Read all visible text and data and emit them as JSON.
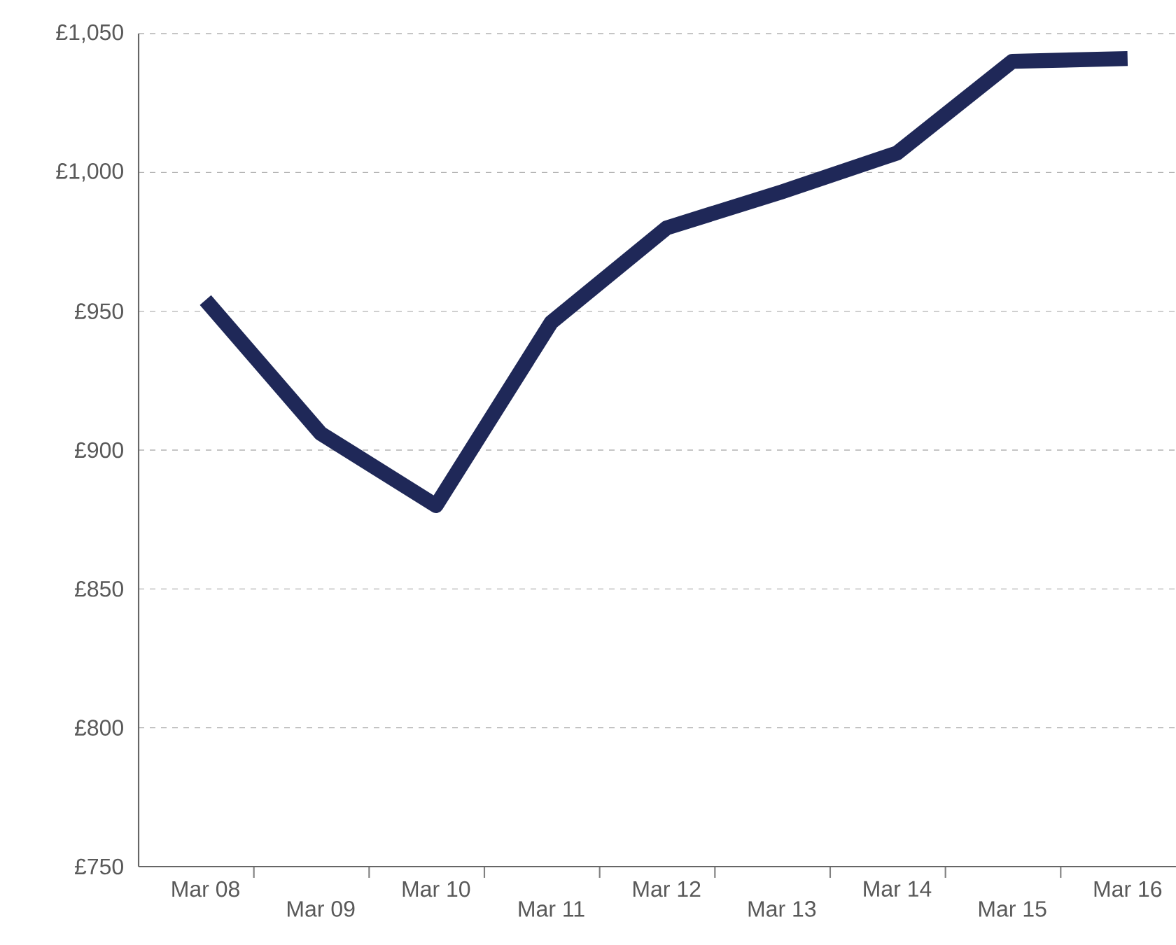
{
  "chart_data": {
    "type": "line",
    "categories": [
      "Mar 08",
      "Mar 09",
      "Mar 10",
      "Mar 11",
      "Mar 12",
      "Mar 13",
      "Mar 14",
      "Mar 15",
      "Mar 16"
    ],
    "values": [
      954,
      906,
      880,
      946,
      980,
      993,
      1007,
      1040,
      1041
    ],
    "color": "#1f2858",
    "ylim": [
      750,
      1050
    ],
    "yticks": [
      {
        "value": 750,
        "label": "£750"
      },
      {
        "value": 800,
        "label": "£800"
      },
      {
        "value": 850,
        "label": "£850"
      },
      {
        "value": 900,
        "label": "£900"
      },
      {
        "value": 950,
        "label": "£950"
      },
      {
        "value": 1000,
        "label": "£1,000"
      },
      {
        "value": 1050,
        "label": "£1,050"
      }
    ],
    "grid": "y",
    "marker": "none",
    "line_style": "solid"
  }
}
